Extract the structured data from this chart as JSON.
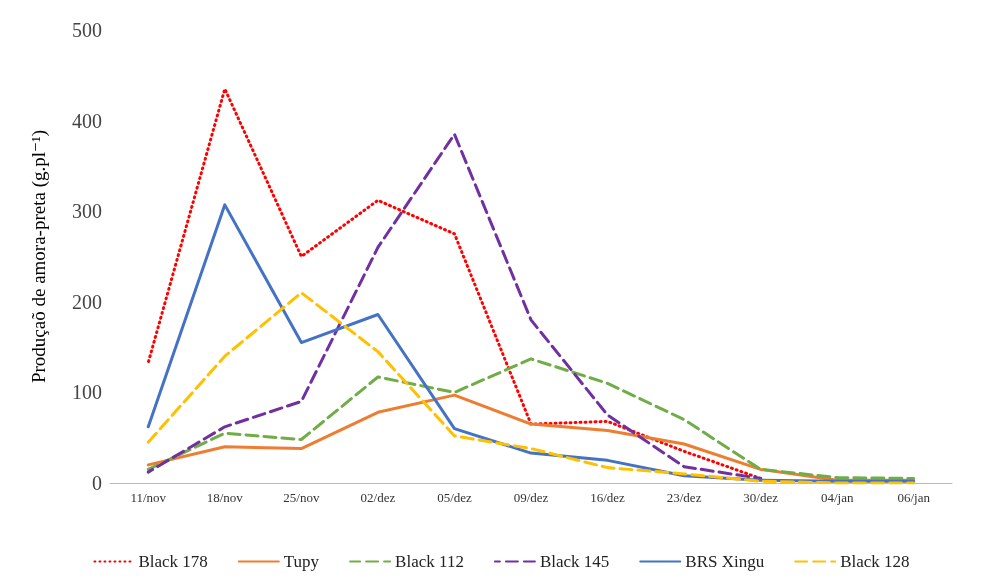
{
  "chart_data": {
    "type": "line",
    "ylabel": "Produçaõ de amora-preta (g.pl⁻¹)",
    "categories": [
      "11/nov",
      "18/nov",
      "25/nov",
      "02/dez",
      "05/dez",
      "09/dez",
      "16/dez",
      "23/dez",
      "30/dez",
      "04/jan",
      "06/jan"
    ],
    "series": [
      {
        "name": "Black 178",
        "color": "#ff0000",
        "line_style": "dotted",
        "values": [
          133,
          435,
          250,
          312,
          275,
          65,
          68,
          35,
          5,
          null,
          null
        ]
      },
      {
        "name": "Tupy",
        "color": "#ed7d31",
        "line_style": "solid",
        "values": [
          20,
          40,
          38,
          78,
          97,
          65,
          58,
          43,
          15,
          3,
          3
        ]
      },
      {
        "name": "Black 112",
        "color": "#70ad47",
        "line_style": "dashed",
        "values": [
          15,
          55,
          48,
          117,
          100,
          137,
          110,
          70,
          15,
          6,
          5
        ]
      },
      {
        "name": "Black 145",
        "color": "#7030a0",
        "line_style": "dashed",
        "values": [
          12,
          62,
          90,
          260,
          385,
          180,
          75,
          18,
          5,
          null,
          null
        ]
      },
      {
        "name": "BRS Xingu",
        "color": "#4472c4",
        "line_style": "solid",
        "values": [
          62,
          307,
          155,
          186,
          60,
          33,
          25,
          8,
          3,
          2,
          2
        ]
      },
      {
        "name": "Black 128",
        "color": "#ffc000",
        "line_style": "dashed",
        "values": [
          45,
          140,
          210,
          145,
          52,
          38,
          17,
          10,
          2,
          0,
          0
        ]
      }
    ],
    "ylim": [
      0,
      500
    ],
    "yticks": [
      0,
      100,
      200,
      300,
      400,
      500
    ],
    "grid": false,
    "legend": "bottom",
    "marker": "none"
  }
}
